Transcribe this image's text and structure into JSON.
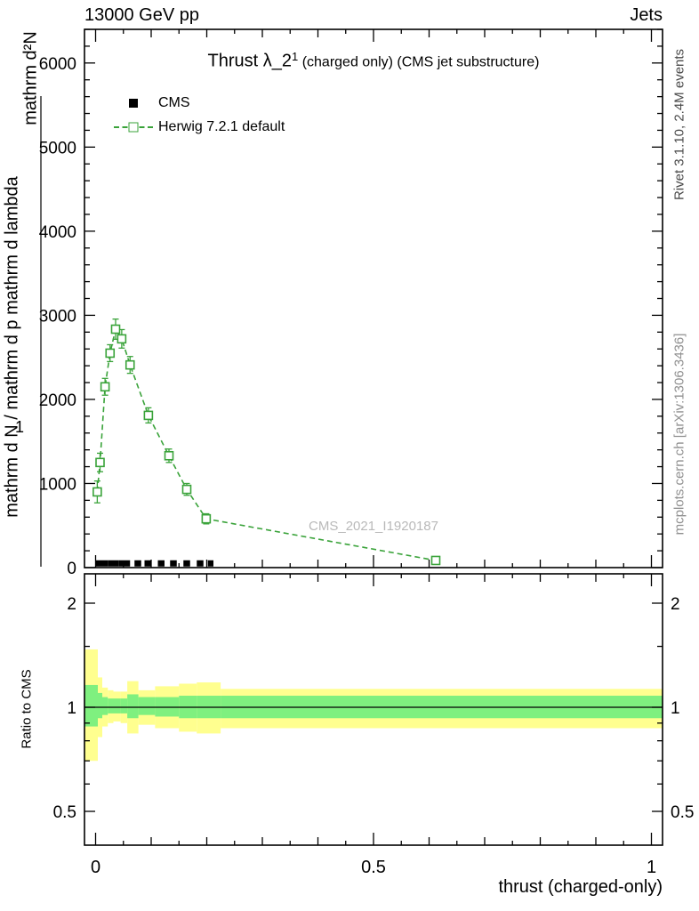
{
  "header": {
    "left": "13000 GeV pp",
    "right": "Jets"
  },
  "title": {
    "main": "Thrust λ_2",
    "superscript": "1",
    "detail": " (charged only) (CMS jet substructure)"
  },
  "legend": {
    "items": [
      {
        "label": "CMS",
        "type": "data"
      },
      {
        "label": "Herwig 7.2.1 default",
        "type": "mc"
      }
    ]
  },
  "watermark": "CMS_2021_I1920187",
  "side_text": {
    "rivet": "Rivet 3.1.10,  2.4M events",
    "mcplots": "mcplots.cern.ch [arXiv:1306.3436]"
  },
  "axes": {
    "xlabel": "thrust (charged-only)",
    "ylabel": {
      "numerator": "mathrm d²N",
      "denominator": "mathrm d N / mathrm d p mathrm d lambda",
      "prefix": "1"
    },
    "ratio_ylabel": "Ratio to CMS"
  },
  "chart_data": {
    "type": "line",
    "title": "Thrust λ_2^1 (charged only) (CMS jet substructure)",
    "xlabel": "thrust (charged-only)",
    "ylabel": "1/N d²N / d p_T d lambda",
    "x_axis": {
      "min": -0.02,
      "max": 1.02,
      "major_ticks": [
        0,
        0.5,
        1
      ],
      "major_tick_labels": [
        "0",
        "0.5",
        "1"
      ],
      "medium_tick_step": 0.1,
      "minor_tick_step": 0.05
    },
    "y_axis_main": {
      "min": 0,
      "max": 6400,
      "major_tick_step": 1000,
      "major_tick_labels": [
        "0",
        "1000",
        "2000",
        "3000",
        "4000",
        "5000",
        "6000"
      ],
      "minor_tick_step": 200,
      "grid": false
    },
    "y_axis_ratio": {
      "scale": "log",
      "min": 0.4,
      "max": 2.43,
      "major_ticks": [
        0.5,
        1,
        2
      ],
      "major_tick_labels": [
        "0.5",
        "1",
        "2"
      ],
      "minor_ticks": [
        0.6,
        0.7,
        0.8,
        0.9,
        1.5
      ]
    },
    "series": [
      {
        "name": "CMS",
        "type": "data",
        "color": "#000000",
        "marker": "filled-square",
        "legend_position": "top-left",
        "points_xlo_xhi_y": [
          [
            0.0,
            0.012,
            50
          ],
          [
            0.012,
            0.022,
            50
          ],
          [
            0.022,
            0.032,
            50
          ],
          [
            0.032,
            0.042,
            50
          ],
          [
            0.042,
            0.052,
            50
          ],
          [
            0.052,
            0.062,
            50
          ],
          [
            0.07,
            0.082,
            50
          ],
          [
            0.088,
            0.1,
            50
          ],
          [
            0.112,
            0.124,
            50
          ],
          [
            0.134,
            0.146,
            50
          ],
          [
            0.158,
            0.17,
            50
          ],
          [
            0.182,
            0.194,
            50
          ],
          [
            0.202,
            0.212,
            50
          ]
        ]
      },
      {
        "name": "Herwig 7.2.1 default",
        "type": "mc",
        "color": "#3aa33a",
        "line": "dashed",
        "marker": "open-square",
        "points_x_y_yerr": [
          [
            0.003,
            900,
            130
          ],
          [
            0.008,
            1250,
            110
          ],
          [
            0.017,
            2150,
            100
          ],
          [
            0.026,
            2550,
            100
          ],
          [
            0.036,
            2835,
            120
          ],
          [
            0.047,
            2720,
            110
          ],
          [
            0.062,
            2410,
            100
          ],
          [
            0.095,
            1810,
            90
          ],
          [
            0.132,
            1330,
            80
          ],
          [
            0.164,
            930,
            70
          ],
          [
            0.199,
            580,
            60
          ],
          [
            0.612,
            85,
            25
          ]
        ]
      }
    ],
    "ratio_panel": {
      "label": "Ratio to CMS",
      "reference_line": 1,
      "band_colors": {
        "yellow": "#ffff8f",
        "green": "#7ff07f"
      },
      "bands_xlo_xhi_ylo_yhi_glo_ghi": [
        [
          -0.02,
          0.004,
          0.7,
          1.47,
          0.88,
          1.16
        ],
        [
          0.004,
          0.012,
          0.82,
          1.22,
          0.93,
          1.1
        ],
        [
          0.012,
          0.022,
          0.88,
          1.14,
          0.95,
          1.07
        ],
        [
          0.022,
          0.032,
          0.9,
          1.12,
          0.96,
          1.06
        ],
        [
          0.032,
          0.045,
          0.91,
          1.11,
          0.96,
          1.06
        ],
        [
          0.045,
          0.057,
          0.9,
          1.11,
          0.96,
          1.06
        ],
        [
          0.057,
          0.077,
          0.84,
          1.19,
          0.93,
          1.09
        ],
        [
          0.077,
          0.107,
          0.89,
          1.12,
          0.95,
          1.07
        ],
        [
          0.107,
          0.15,
          0.87,
          1.15,
          0.94,
          1.07
        ],
        [
          0.15,
          0.182,
          0.85,
          1.17,
          0.93,
          1.08
        ],
        [
          0.182,
          0.225,
          0.84,
          1.18,
          0.93,
          1.08
        ],
        [
          0.225,
          1.02,
          0.87,
          1.13,
          0.93,
          1.08
        ]
      ]
    }
  }
}
